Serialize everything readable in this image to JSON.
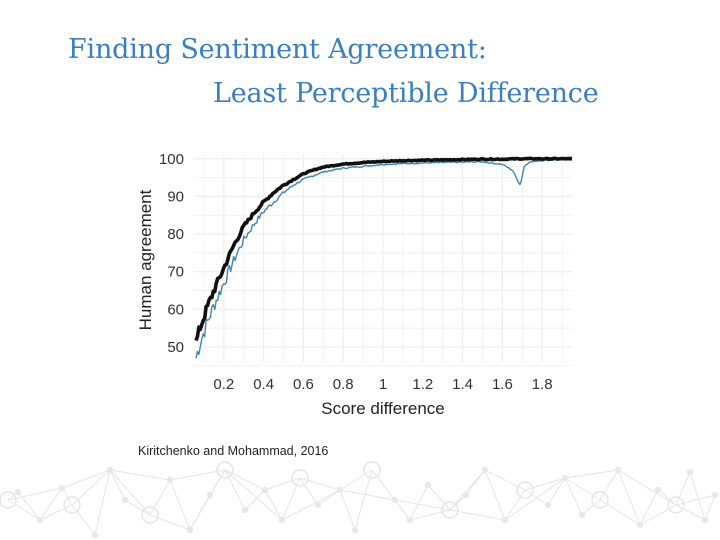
{
  "slide": {
    "title_line1": "Finding Sentiment Agreement:",
    "title_line2": "Least Perceptible Difference",
    "citation": "Kiritchenko and Mohammad, 2016",
    "title_color": "#3a7fc1"
  },
  "chart_data": {
    "type": "line",
    "xlabel": "Score difference",
    "ylabel": "Human agreement",
    "xlim": [
      0.05,
      1.95
    ],
    "ylim": [
      46,
      101
    ],
    "x_ticks": [
      "0.2",
      "0.4",
      "0.6",
      "0.8",
      "1",
      "1.2",
      "1.4",
      "1.6",
      "1.8"
    ],
    "y_ticks": [
      "50",
      "60",
      "70",
      "80",
      "90",
      "100"
    ],
    "grid": true,
    "colors": {
      "series_a": "#111111",
      "series_b": "#3f86ad"
    },
    "series": [
      {
        "x": [
          0.06,
          0.08,
          0.1,
          0.12,
          0.15,
          0.2,
          0.25,
          0.3,
          0.35,
          0.4,
          0.45,
          0.5,
          0.55,
          0.6,
          0.65,
          0.7,
          0.8,
          0.9,
          1.0,
          1.1,
          1.2,
          1.3,
          1.4,
          1.5,
          1.6,
          1.7,
          1.8,
          1.95
        ],
        "y": [
          51,
          55,
          58,
          61,
          65,
          71,
          77,
          82,
          85.5,
          88.5,
          91,
          93,
          94.5,
          96,
          97,
          97.8,
          98.6,
          99,
          99.3,
          99.5,
          99.6,
          99.7,
          99.8,
          99.9,
          99.9,
          100,
          100,
          100
        ]
      },
      {
        "x": [
          0.06,
          0.08,
          0.1,
          0.12,
          0.15,
          0.2,
          0.25,
          0.3,
          0.35,
          0.4,
          0.45,
          0.5,
          0.55,
          0.6,
          0.65,
          0.7,
          0.8,
          0.9,
          1.0,
          1.1,
          1.2,
          1.3,
          1.4,
          1.5,
          1.6,
          1.65,
          1.69,
          1.71,
          1.73,
          1.78,
          1.85,
          1.95
        ],
        "y": [
          47,
          51,
          54,
          57,
          61,
          67,
          73,
          78.5,
          82.5,
          86,
          88.5,
          91,
          93,
          94.5,
          95.5,
          96.5,
          97.5,
          98,
          98.5,
          98.7,
          98.9,
          99,
          99.1,
          99.2,
          98.5,
          97,
          93,
          98,
          99,
          99.5,
          99.7,
          99.8
        ]
      }
    ]
  }
}
